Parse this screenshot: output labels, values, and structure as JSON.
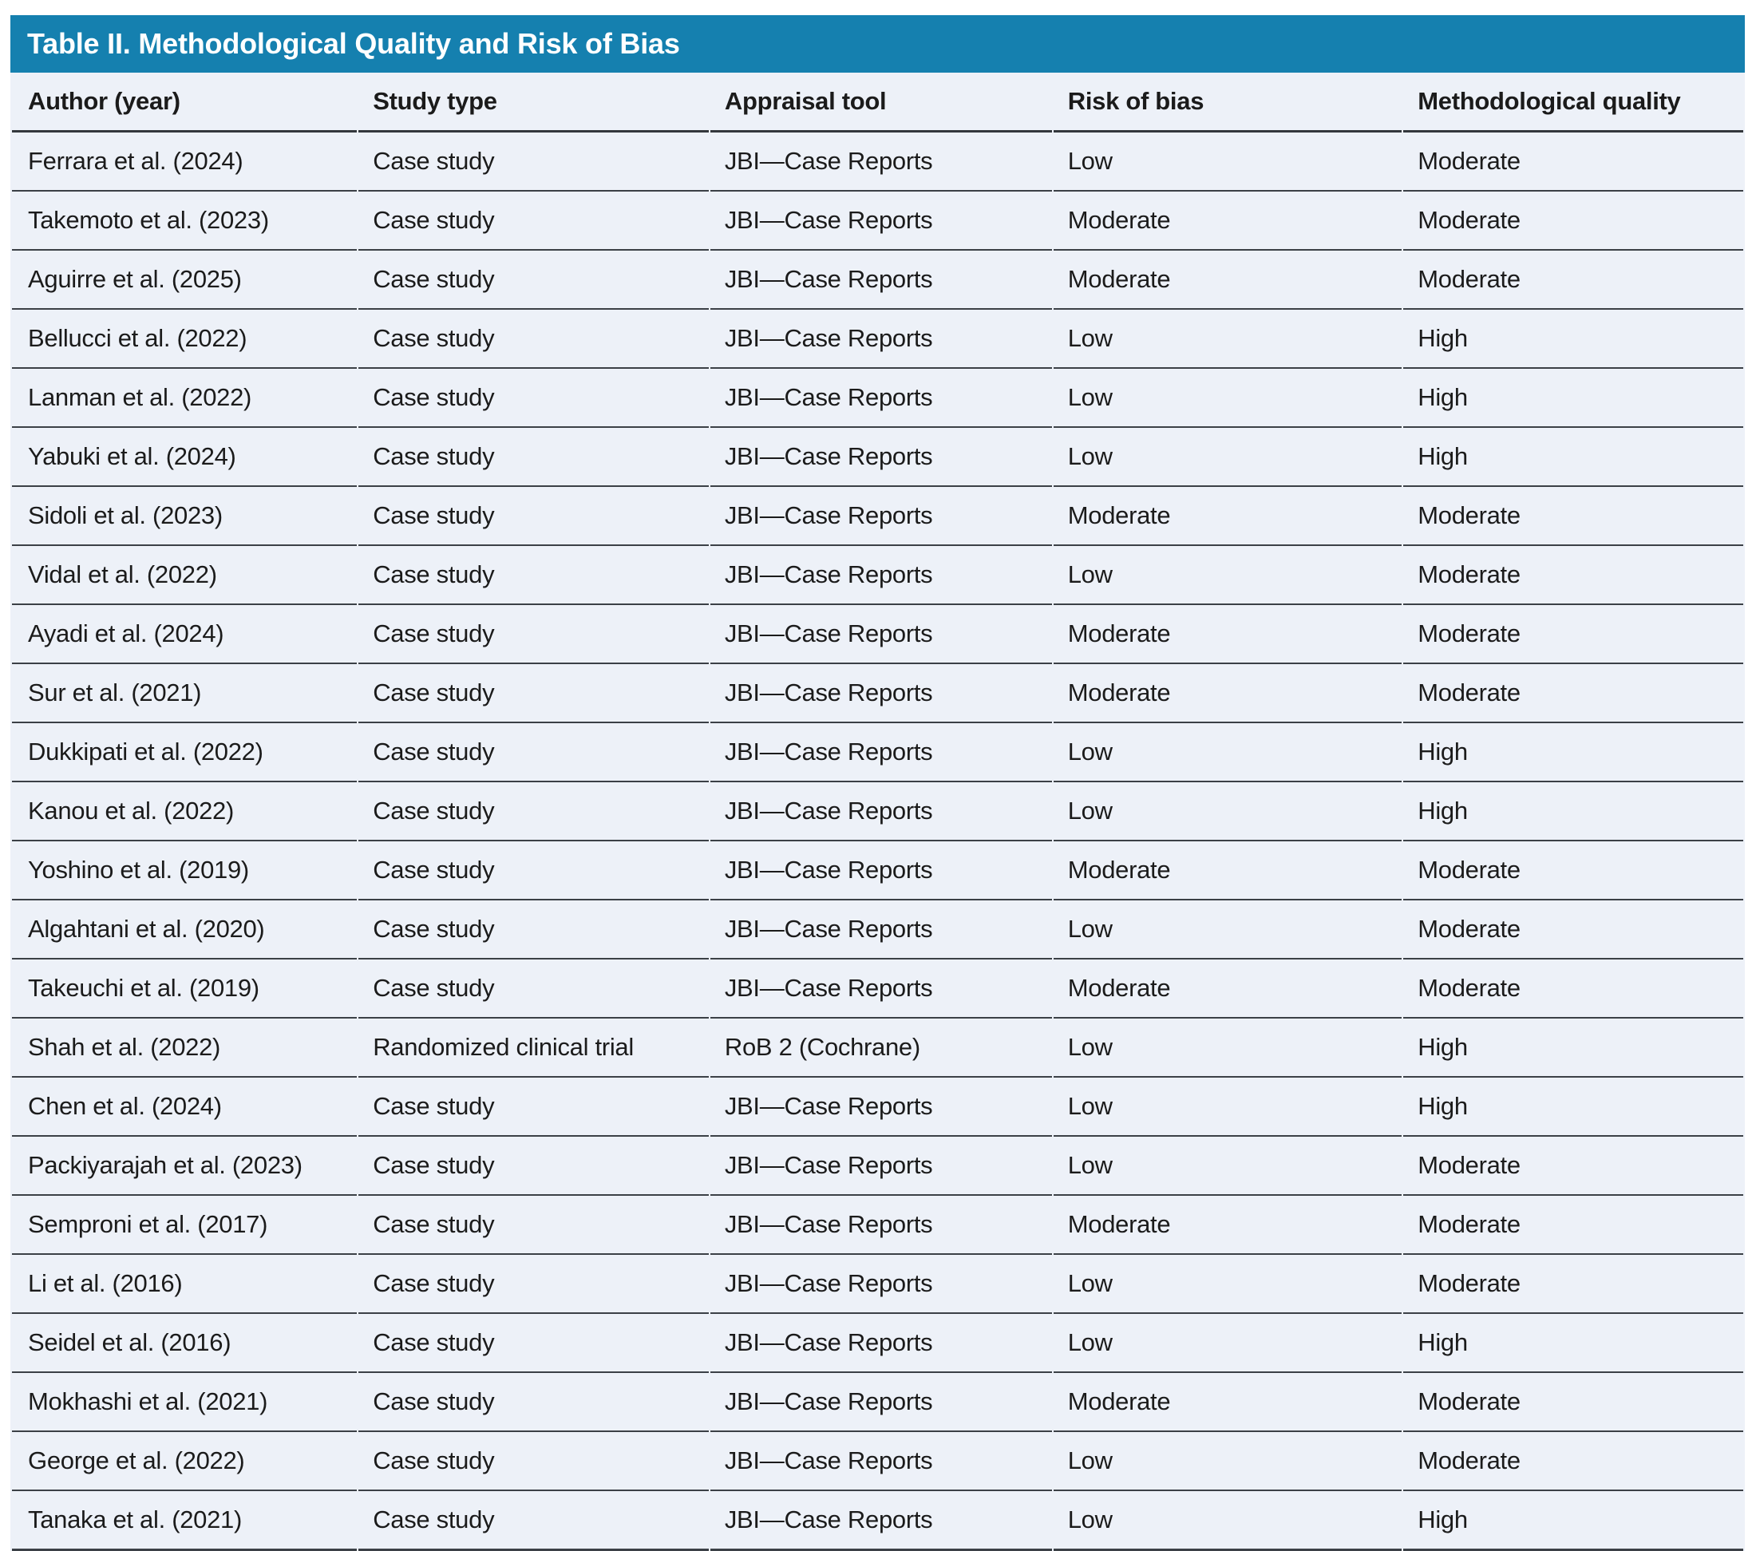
{
  "table": {
    "title": "Table II. Methodological Quality and Risk of Bias",
    "columns": [
      "Author (year)",
      "Study type",
      "Appraisal tool",
      "Risk of bias",
      "Methodological quality"
    ],
    "rows": [
      [
        "Ferrara et al. (2024)",
        "Case study",
        "JBI—Case Reports",
        "Low",
        "Moderate"
      ],
      [
        "Takemoto et al. (2023)",
        "Case study",
        "JBI—Case Reports",
        "Moderate",
        "Moderate"
      ],
      [
        "Aguirre et al. (2025)",
        "Case study",
        "JBI—Case Reports",
        "Moderate",
        "Moderate"
      ],
      [
        "Bellucci et al. (2022)",
        "Case study",
        "JBI—Case Reports",
        "Low",
        "High"
      ],
      [
        "Lanman et al. (2022)",
        "Case study",
        "JBI—Case Reports",
        "Low",
        "High"
      ],
      [
        "Yabuki et al. (2024)",
        "Case study",
        "JBI—Case Reports",
        "Low",
        "High"
      ],
      [
        "Sidoli et al. (2023)",
        "Case study",
        "JBI—Case Reports",
        "Moderate",
        "Moderate"
      ],
      [
        "Vidal et al. (2022)",
        "Case study",
        "JBI—Case Reports",
        "Low",
        "Moderate"
      ],
      [
        "Ayadi et al. (2024)",
        "Case study",
        "JBI—Case Reports",
        "Moderate",
        "Moderate"
      ],
      [
        "Sur et al. (2021)",
        "Case study",
        "JBI—Case Reports",
        "Moderate",
        "Moderate"
      ],
      [
        "Dukkipati et al. (2022)",
        "Case study",
        "JBI—Case Reports",
        "Low",
        "High"
      ],
      [
        "Kanou et al. (2022)",
        "Case study",
        "JBI—Case Reports",
        "Low",
        "High"
      ],
      [
        "Yoshino et al. (2019)",
        "Case study",
        "JBI—Case Reports",
        "Moderate",
        "Moderate"
      ],
      [
        "Algahtani et al. (2020)",
        "Case study",
        "JBI—Case Reports",
        "Low",
        "Moderate"
      ],
      [
        "Takeuchi et al. (2019)",
        "Case study",
        "JBI—Case Reports",
        "Moderate",
        "Moderate"
      ],
      [
        "Shah et al. (2022)",
        "Randomized clinical trial",
        "RoB 2 (Cochrane)",
        "Low",
        "High"
      ],
      [
        "Chen et al. (2024)",
        "Case study",
        "JBI—Case Reports",
        "Low",
        "High"
      ],
      [
        "Packiyarajah et al. (2023)",
        "Case study",
        "JBI—Case Reports",
        "Low",
        "Moderate"
      ],
      [
        "Semproni et al. (2017)",
        "Case study",
        "JBI—Case Reports",
        "Moderate",
        "Moderate"
      ],
      [
        "Li et al. (2016)",
        "Case study",
        "JBI—Case Reports",
        "Low",
        "Moderate"
      ],
      [
        "Seidel et al. (2016)",
        "Case study",
        "JBI—Case Reports",
        "Low",
        "High"
      ],
      [
        "Mokhashi et al. (2021)",
        "Case study",
        "JBI—Case Reports",
        "Moderate",
        "Moderate"
      ],
      [
        "George et al. (2022)",
        "Case study",
        "JBI—Case Reports",
        "Low",
        "Moderate"
      ],
      [
        "Tanaka et al. (2021)",
        "Case study",
        "JBI—Case Reports",
        "Low",
        "High"
      ]
    ]
  },
  "colors": {
    "title_bar": "#1580af",
    "row_background": "#edf1f8",
    "divider": "#3b4046",
    "title_text": "#ffffff",
    "body_text": "#1b1b1b"
  }
}
